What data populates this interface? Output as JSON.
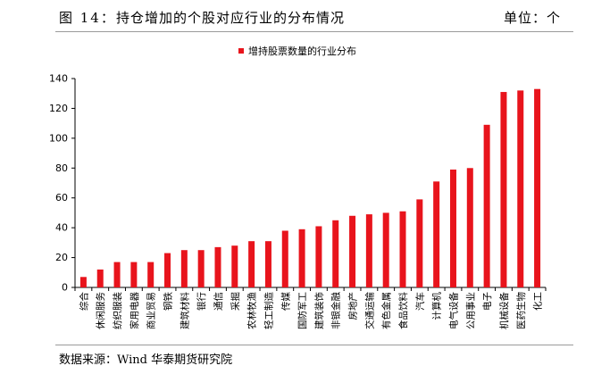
{
  "figure": {
    "label": "图 14：",
    "title": "持仓增加的个股对应行业的分布情况",
    "unit": "单位：个",
    "source": "数据来源：Wind  华泰期货研究院"
  },
  "chart_data": {
    "type": "bar",
    "title": "",
    "xlabel": "",
    "ylabel": "",
    "ylim": [
      0,
      140
    ],
    "yticks": [
      0,
      20,
      40,
      60,
      80,
      100,
      120,
      140
    ],
    "grid": false,
    "legend_position": "top-center",
    "color": "#e8141c",
    "categories": [
      "综合",
      "休闲服务",
      "纺织服装",
      "家用电器",
      "商业贸易",
      "钢铁",
      "建筑材料",
      "银行",
      "通信",
      "采掘",
      "农林牧渔",
      "轻工制造",
      "传媒",
      "国防军工",
      "建筑装饰",
      "非银金融",
      "房地产",
      "交通运输",
      "有色金属",
      "食品饮料",
      "汽车",
      "计算机",
      "电气设备",
      "公用事业",
      "电子",
      "机械设备",
      "医药生物",
      "化工"
    ],
    "series": [
      {
        "name": "增持股票数量的行业分布",
        "values": [
          7,
          12,
          17,
          17,
          17,
          23,
          25,
          25,
          27,
          28,
          31,
          31,
          38,
          39,
          41,
          45,
          48,
          49,
          50,
          51,
          59,
          71,
          79,
          80,
          109,
          131,
          132,
          133
        ]
      }
    ]
  }
}
